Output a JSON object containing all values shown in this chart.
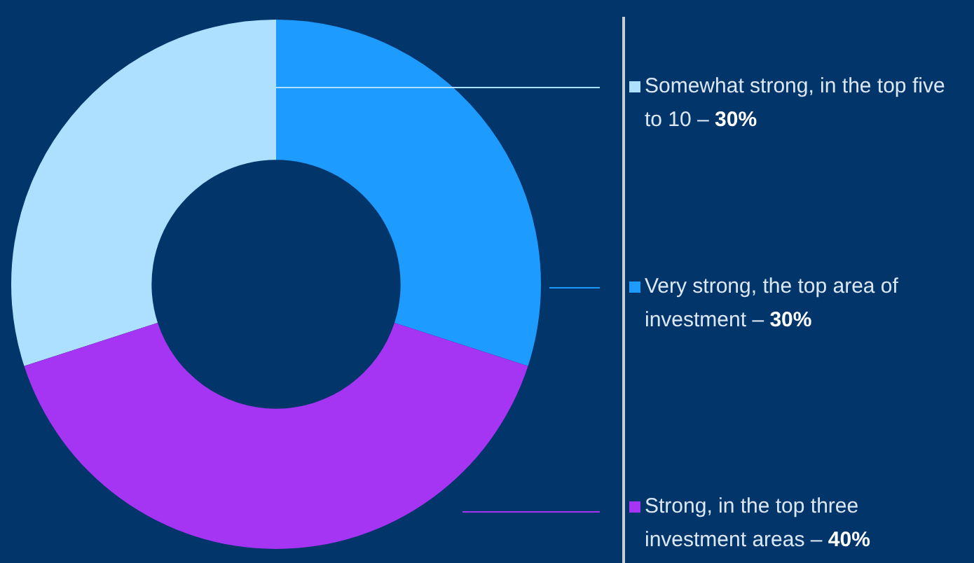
{
  "chart_data": {
    "type": "donut",
    "categories": [
      "Somewhat strong, in the top five to 10 –",
      "Very strong, the top area of investment –",
      "Strong, in the top three investment areas –"
    ],
    "values": [
      30,
      30,
      40
    ],
    "value_labels": [
      "30%",
      "30%",
      "40%"
    ],
    "colors": [
      "#addfff",
      "#1e9bff",
      "#a535f2"
    ],
    "legend": "right"
  }
}
